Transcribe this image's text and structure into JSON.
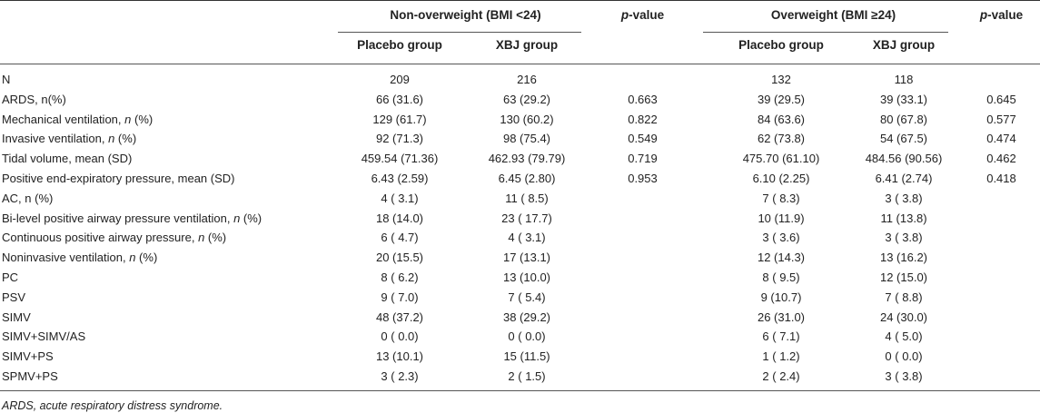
{
  "header": {
    "group1_title": "Non-overweight (BMI <24)",
    "group2_title": "Overweight (BMI ≥24)",
    "pvalue_p": "p",
    "pvalue_rest": "-value",
    "sub_placebo": "Placebo group",
    "sub_xbj": "XBJ group"
  },
  "rows": [
    {
      "label": "N",
      "label_italic": "",
      "label_after": "",
      "a": "209",
      "b": "216",
      "p1": "",
      "c": "132",
      "d": "118",
      "p2": ""
    },
    {
      "label": "ARDS, n(%)",
      "label_italic": "",
      "label_after": "",
      "a": "66 (31.6)",
      "b": "63 (29.2)",
      "p1": "0.663",
      "c": "39 (29.5)",
      "d": "39 (33.1)",
      "p2": "0.645"
    },
    {
      "label": "Mechanical ventilation, ",
      "label_italic": "n",
      "label_after": " (%)",
      "a": "129 (61.7)",
      "b": "130 (60.2)",
      "p1": "0.822",
      "c": "84 (63.6)",
      "d": "80 (67.8)",
      "p2": "0.577"
    },
    {
      "label": "Invasive ventilation, ",
      "label_italic": "n",
      "label_after": " (%)",
      "a": "92 (71.3)",
      "b": "98 (75.4)",
      "p1": "0.549",
      "c": "62 (73.8)",
      "d": "54 (67.5)",
      "p2": "0.474"
    },
    {
      "label": "Tidal volume, mean (SD)",
      "label_italic": "",
      "label_after": "",
      "a": "459.54 (71.36)",
      "b": "462.93 (79.79)",
      "p1": "0.719",
      "c": "475.70 (61.10)",
      "d": "484.56 (90.56)",
      "p2": "0.462"
    },
    {
      "label": "Positive end-expiratory pressure, mean (SD)",
      "label_italic": "",
      "label_after": "",
      "a": "6.43 (2.59)",
      "b": "6.45 (2.80)",
      "p1": "0.953",
      "c": "6.10 (2.25)",
      "d": "6.41 (2.74)",
      "p2": "0.418"
    },
    {
      "label": "AC, n (%)",
      "label_italic": "",
      "label_after": "",
      "a": "4 ( 3.1)",
      "b": "11 ( 8.5)",
      "p1": "",
      "c": "7 ( 8.3)",
      "d": "3 ( 3.8)",
      "p2": ""
    },
    {
      "label": "Bi-level positive airway pressure ventilation, ",
      "label_italic": "n",
      "label_after": " (%)",
      "a": "18 (14.0)",
      "b": "23 ( 17.7)",
      "p1": "",
      "c": "10 (11.9)",
      "d": "11 (13.8)",
      "p2": ""
    },
    {
      "label": "Continuous positive airway pressure, ",
      "label_italic": "n",
      "label_after": " (%)",
      "a": "6 ( 4.7)",
      "b": "4 ( 3.1)",
      "p1": "",
      "c": "3 ( 3.6)",
      "d": "3 ( 3.8)",
      "p2": ""
    },
    {
      "label": "Noninvasive ventilation, ",
      "label_italic": "n",
      "label_after": " (%)",
      "a": "20 (15.5)",
      "b": "17 (13.1)",
      "p1": "",
      "c": "12 (14.3)",
      "d": "13 (16.2)",
      "p2": ""
    },
    {
      "label": "PC",
      "label_italic": "",
      "label_after": "",
      "a": "8 ( 6.2)",
      "b": "13 (10.0)",
      "p1": "",
      "c": "8 ( 9.5)",
      "d": "12 (15.0)",
      "p2": ""
    },
    {
      "label": "PSV",
      "label_italic": "",
      "label_after": "",
      "a": "9 ( 7.0)",
      "b": "7 ( 5.4)",
      "p1": "",
      "c": "9 (10.7)",
      "d": "7 ( 8.8)",
      "p2": ""
    },
    {
      "label": "SIMV",
      "label_italic": "",
      "label_after": "",
      "a": "48 (37.2)",
      "b": "38 (29.2)",
      "p1": "",
      "c": "26 (31.0)",
      "d": "24 (30.0)",
      "p2": ""
    },
    {
      "label": "SIMV+SIMV/AS",
      "label_italic": "",
      "label_after": "",
      "a": "0 ( 0.0)",
      "b": "0 ( 0.0)",
      "p1": "",
      "c": "6 ( 7.1)",
      "d": "4 ( 5.0)",
      "p2": ""
    },
    {
      "label": "SIMV+PS",
      "label_italic": "",
      "label_after": "",
      "a": "13 (10.1)",
      "b": "15 (11.5)",
      "p1": "",
      "c": "1 ( 1.2)",
      "d": "0 ( 0.0)",
      "p2": ""
    },
    {
      "label": "SPMV+PS",
      "label_italic": "",
      "label_after": "",
      "a": "3 ( 2.3)",
      "b": "2 ( 1.5)",
      "p1": "",
      "c": "2 ( 2.4)",
      "d": "3 ( 3.8)",
      "p2": ""
    }
  ],
  "footnote": "ARDS, acute respiratory distress syndrome."
}
